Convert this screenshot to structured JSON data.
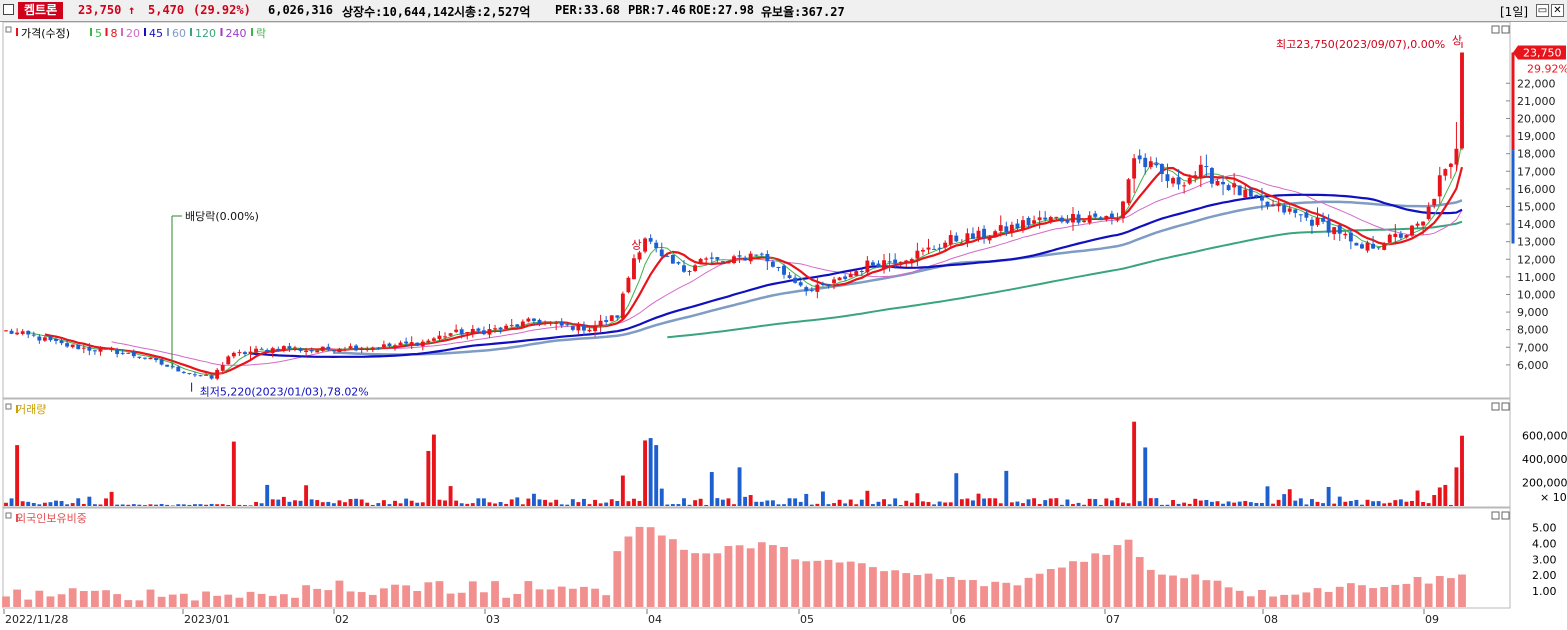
{
  "header": {
    "stock_name": "켐트론",
    "price": "23,750",
    "change_arrow": "🠅",
    "change": "5,470",
    "change_pct": "(29.92%)",
    "volume": "6,026,316",
    "listed_shares": "상장수:10,644,142",
    "market_cap": "시총:2,527억",
    "per": "PER:33.68",
    "pbr": "PBR:7.46",
    "roe": "ROE:27.98",
    "retention": "유보율:367.27",
    "period": "[1일]"
  },
  "colors": {
    "up": "#e8141c",
    "down": "#1e5fd0",
    "ma5": "#3cb44b",
    "ma8": "#e8141c",
    "ma20": "#d36ac7",
    "ma45": "#1010c0",
    "ma60": "#7f9cc4",
    "ma120": "#3aa57c",
    "ma240": "#9b3dc8",
    "foreign": "#f29090"
  },
  "legend": [
    {
      "label": "가격(수정)",
      "color": "#e8141c"
    },
    {
      "label": "5",
      "color": "#3cb44b"
    },
    {
      "label": "8",
      "color": "#e8141c"
    },
    {
      "label": "20",
      "color": "#d36ac7"
    },
    {
      "label": "45",
      "color": "#1010c0"
    },
    {
      "label": "60",
      "color": "#7f9cc4"
    },
    {
      "label": "120",
      "color": "#3aa57c"
    },
    {
      "label": "240",
      "color": "#9b3dc8"
    },
    {
      "label": "락",
      "color": "#3cb44b"
    }
  ],
  "annotations": {
    "high": "최고23,750(2023/09/07),0.00%",
    "low": "최저5,220(2023/01/03),78.02%",
    "dividend": "배당락(0.00%)",
    "limit_up": "상",
    "price_tag": "23,750",
    "pct_tag": "29.92%"
  },
  "chart_data": [
    {
      "type": "candlestick",
      "title": "가격(수정)",
      "yticks": [
        6000,
        7000,
        8000,
        9000,
        10000,
        11000,
        12000,
        13000,
        14000,
        15000,
        16000,
        17000,
        18000,
        19000,
        20000,
        21000,
        22000
      ],
      "ytick_labels": [
        "6,000",
        "7,000",
        "8,000",
        "9,000",
        "10,000",
        "11,000",
        "12,000",
        "13,000",
        "14,000",
        "15,000",
        "16,000",
        "17,000",
        "18,000",
        "19,000",
        "20,000",
        "21,000",
        "22,000"
      ],
      "ylim": [
        4800,
        24800
      ],
      "x_labels": [
        "2022/11/28",
        "2023/01",
        "02",
        "03",
        "04",
        "05",
        "06",
        "07",
        "08",
        "09"
      ],
      "close_anchors": [
        {
          "i": 0,
          "c": 7900
        },
        {
          "i": 5,
          "c": 7600
        },
        {
          "i": 10,
          "c": 7150
        },
        {
          "i": 15,
          "c": 6900
        },
        {
          "i": 20,
          "c": 6750
        },
        {
          "i": 25,
          "c": 6400
        },
        {
          "i": 30,
          "c": 5800
        },
        {
          "i": 35,
          "c": 5400
        },
        {
          "i": 37,
          "c": 5220
        },
        {
          "i": 40,
          "c": 6500
        },
        {
          "i": 45,
          "c": 6800
        },
        {
          "i": 50,
          "c": 7000
        },
        {
          "i": 55,
          "c": 6800
        },
        {
          "i": 60,
          "c": 7000
        },
        {
          "i": 65,
          "c": 7000
        },
        {
          "i": 70,
          "c": 7100
        },
        {
          "i": 75,
          "c": 7300
        },
        {
          "i": 80,
          "c": 7800
        },
        {
          "i": 85,
          "c": 7900
        },
        {
          "i": 90,
          "c": 8100
        },
        {
          "i": 95,
          "c": 8500
        },
        {
          "i": 100,
          "c": 8200
        },
        {
          "i": 105,
          "c": 8100
        },
        {
          "i": 110,
          "c": 8800
        },
        {
          "i": 113,
          "c": 12100
        },
        {
          "i": 115,
          "c": 13300
        },
        {
          "i": 118,
          "c": 12000
        },
        {
          "i": 122,
          "c": 11400
        },
        {
          "i": 125,
          "c": 12000
        },
        {
          "i": 130,
          "c": 11800
        },
        {
          "i": 135,
          "c": 12400
        },
        {
          "i": 140,
          "c": 11200
        },
        {
          "i": 145,
          "c": 10200
        },
        {
          "i": 150,
          "c": 10800
        },
        {
          "i": 155,
          "c": 11700
        },
        {
          "i": 160,
          "c": 12000
        },
        {
          "i": 165,
          "c": 12400
        },
        {
          "i": 170,
          "c": 13100
        },
        {
          "i": 175,
          "c": 13300
        },
        {
          "i": 180,
          "c": 13700
        },
        {
          "i": 185,
          "c": 14200
        },
        {
          "i": 190,
          "c": 14300
        },
        {
          "i": 195,
          "c": 14500
        },
        {
          "i": 200,
          "c": 14200
        },
        {
          "i": 203,
          "c": 17800
        },
        {
          "i": 206,
          "c": 17200
        },
        {
          "i": 210,
          "c": 16300
        },
        {
          "i": 215,
          "c": 17000
        },
        {
          "i": 220,
          "c": 16200
        },
        {
          "i": 225,
          "c": 15200
        },
        {
          "i": 230,
          "c": 14800
        },
        {
          "i": 235,
          "c": 14200
        },
        {
          "i": 240,
          "c": 13600
        },
        {
          "i": 243,
          "c": 12500
        },
        {
          "i": 248,
          "c": 13000
        },
        {
          "i": 252,
          "c": 13500
        },
        {
          "i": 255,
          "c": 14000
        },
        {
          "i": 258,
          "c": 16500
        },
        {
          "i": 260,
          "c": 17200
        },
        {
          "i": 261,
          "c": 18280
        },
        {
          "i": 262,
          "c": 23750
        }
      ],
      "n_days": 263,
      "volume": {
        "title": "거래량",
        "yticks": [
          200000,
          400000,
          600000
        ],
        "ytick_labels": [
          "200,000",
          "400,000",
          "600,000"
        ],
        "unit": "× 10",
        "spikes": [
          {
            "i": 2,
            "v": 520000
          },
          {
            "i": 41,
            "v": 550000
          },
          {
            "i": 47,
            "v": 180000
          },
          {
            "i": 76,
            "v": 470000
          },
          {
            "i": 77,
            "v": 610000
          },
          {
            "i": 80,
            "v": 170000
          },
          {
            "i": 111,
            "v": 260000
          },
          {
            "i": 115,
            "v": 560000
          },
          {
            "i": 116,
            "v": 580000
          },
          {
            "i": 117,
            "v": 520000
          },
          {
            "i": 127,
            "v": 290000
          },
          {
            "i": 132,
            "v": 330000
          },
          {
            "i": 171,
            "v": 280000
          },
          {
            "i": 180,
            "v": 300000
          },
          {
            "i": 203,
            "v": 720000
          },
          {
            "i": 205,
            "v": 500000
          },
          {
            "i": 259,
            "v": 180000
          },
          {
            "i": 261,
            "v": 330000
          },
          {
            "i": 262,
            "v": 600000
          }
        ]
      },
      "foreign": {
        "title": "외국인보유비중",
        "yticks": [
          1,
          2,
          3,
          4,
          5
        ],
        "ytick_labels": [
          "1.00",
          "2.00",
          "3.00",
          "4.00",
          "5.00"
        ],
        "peak": [
          {
            "i": 110,
            "v": 3.8
          },
          {
            "i": 113,
            "v": 4.6
          },
          {
            "i": 115,
            "v": 5.3
          },
          {
            "i": 117,
            "v": 4.8
          },
          {
            "i": 120,
            "v": 4.2
          },
          {
            "i": 125,
            "v": 3.2
          },
          {
            "i": 135,
            "v": 4.0
          },
          {
            "i": 145,
            "v": 3.0
          },
          {
            "i": 160,
            "v": 2.2
          },
          {
            "i": 180,
            "v": 1.3
          },
          {
            "i": 203,
            "v": 4.2
          },
          {
            "i": 205,
            "v": 2.2
          },
          {
            "i": 215,
            "v": 2.0
          },
          {
            "i": 225,
            "v": 0.8
          },
          {
            "i": 262,
            "v": 1.9
          }
        ]
      }
    }
  ]
}
